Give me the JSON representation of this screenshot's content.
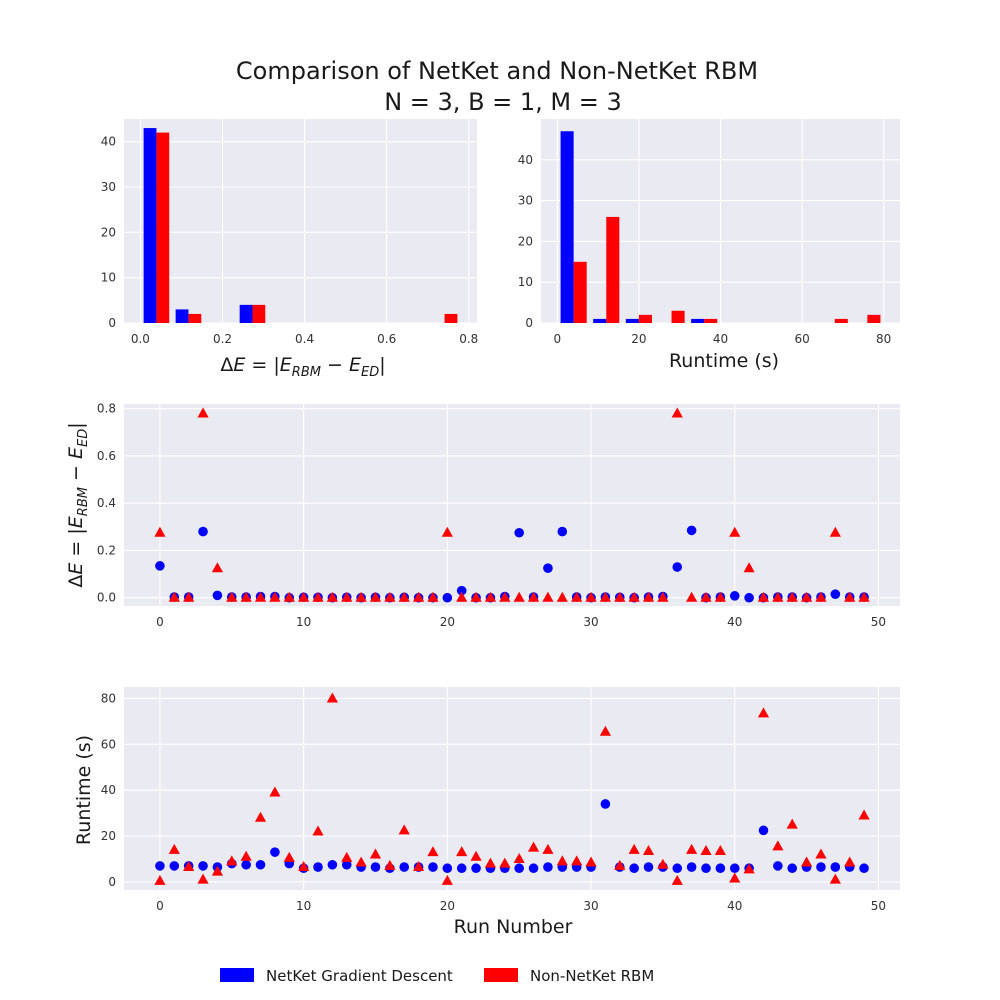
{
  "figure": {
    "title_line1": "Comparison of NetKet and Non-NetKet RBM",
    "title_line2": "N = 3, B = 1, M = 3"
  },
  "legend": {
    "entries": [
      {
        "label": "NetKet Gradient Descent",
        "color": "#0000ff"
      },
      {
        "label": "Non-NetKet RBM",
        "color": "#ff0000"
      }
    ]
  },
  "chart_data": [
    {
      "id": "hist_deltaE",
      "type": "bar",
      "xlabel": "ΔE = |E_RBM − E_ED|",
      "xlim": [
        -0.04,
        0.82
      ],
      "ylim": [
        0,
        45
      ],
      "xticks": [
        0.0,
        0.2,
        0.4,
        0.6,
        0.8
      ],
      "xtick_labels": [
        "0.0",
        "0.2",
        "0.4",
        "0.6",
        "0.8"
      ],
      "yticks": [
        0,
        10,
        20,
        30,
        40
      ],
      "bin_centers": [
        0.039,
        0.117,
        0.195,
        0.273,
        0.351,
        0.429,
        0.507,
        0.585,
        0.663,
        0.741
      ],
      "bar_width": 0.0312,
      "series": [
        {
          "name": "NetKet Gradient Descent",
          "color": "#0000ff",
          "values": [
            43,
            3,
            0,
            4,
            0,
            0,
            0,
            0,
            0,
            0
          ]
        },
        {
          "name": "Non-NetKet RBM",
          "color": "#ff0000",
          "values": [
            42,
            2,
            0,
            4,
            0,
            0,
            0,
            0,
            0,
            2
          ]
        }
      ]
    },
    {
      "id": "hist_runtime",
      "type": "bar",
      "xlabel": "Runtime (s)",
      "xlim": [
        -4,
        84
      ],
      "ylim": [
        0,
        50
      ],
      "xticks": [
        0,
        20,
        40,
        60,
        80
      ],
      "xtick_labels": [
        "0",
        "20",
        "40",
        "60",
        "80"
      ],
      "yticks": [
        0,
        10,
        20,
        30,
        40
      ],
      "bin_centers": [
        4,
        12,
        20,
        28,
        36,
        44,
        52,
        60,
        68,
        76
      ],
      "bar_width": 3.2,
      "series": [
        {
          "name": "NetKet Gradient Descent",
          "color": "#0000ff",
          "values": [
            47,
            1,
            1,
            0,
            1,
            0,
            0,
            0,
            0,
            0
          ]
        },
        {
          "name": "Non-NetKet RBM",
          "color": "#ff0000",
          "values": [
            15,
            26,
            2,
            3,
            1,
            0,
            0,
            0,
            1,
            2
          ]
        }
      ]
    },
    {
      "id": "scatter_deltaE",
      "type": "scatter",
      "ylabel": "ΔE = |E_RBM − E_ED|",
      "xlim": [
        -2.5,
        51.5
      ],
      "ylim": [
        -0.035,
        0.82
      ],
      "xticks": [
        0,
        10,
        20,
        30,
        40,
        50
      ],
      "xtick_labels": [
        "0",
        "10",
        "20",
        "30",
        "40",
        "50"
      ],
      "yticks": [
        0.0,
        0.2,
        0.4,
        0.6,
        0.8
      ],
      "ytick_labels": [
        "0.0",
        "0.2",
        "0.4",
        "0.6",
        "0.8"
      ],
      "x": [
        0,
        1,
        2,
        3,
        4,
        5,
        6,
        7,
        8,
        9,
        10,
        11,
        12,
        13,
        14,
        15,
        16,
        17,
        18,
        19,
        20,
        21,
        22,
        23,
        24,
        25,
        26,
        27,
        28,
        29,
        30,
        31,
        32,
        33,
        34,
        35,
        36,
        37,
        38,
        39,
        40,
        41,
        42,
        43,
        44,
        45,
        46,
        47,
        48,
        49
      ],
      "series": [
        {
          "name": "NetKet Gradient Descent",
          "marker": "circle",
          "color": "#0000ff",
          "values": [
            0.135,
            0.003,
            0.003,
            0.28,
            0.01,
            0.003,
            0.003,
            0.005,
            0.005,
            0.0,
            0.002,
            0.002,
            0.0,
            0.002,
            0.0,
            0.002,
            0.0,
            0.002,
            0.0,
            0.0,
            0.0,
            0.03,
            0.0,
            0.0,
            0.005,
            0.275,
            0.003,
            0.125,
            0.28,
            0.003,
            0.0,
            0.003,
            0.002,
            0.0,
            0.003,
            0.005,
            0.13,
            0.285,
            0.0,
            0.003,
            0.008,
            0.0,
            0.0,
            0.003,
            0.003,
            0.0,
            0.003,
            0.015,
            0.003,
            0.003
          ]
        },
        {
          "name": "Non-NetKet RBM",
          "marker": "triangle",
          "color": "#ff0000",
          "values": [
            0.275,
            0.0,
            0.0,
            0.78,
            0.125,
            0.0,
            0.0,
            0.0,
            0.0,
            0.0,
            0.0,
            0.0,
            0.0,
            0.0,
            0.0,
            0.0,
            0.0,
            0.0,
            0.0,
            0.0,
            0.275,
            0.0,
            0.0,
            0.0,
            0.0,
            0.0,
            0.0,
            0.0,
            0.0,
            0.0,
            0.0,
            0.0,
            0.0,
            0.0,
            0.0,
            0.0,
            0.78,
            0.0,
            0.0,
            0.0,
            0.275,
            0.125,
            0.0,
            0.0,
            0.0,
            0.0,
            0.0,
            0.275,
            0.0,
            0.0
          ]
        }
      ]
    },
    {
      "id": "scatter_runtime",
      "type": "scatter",
      "xlabel": "Run Number",
      "ylabel": "Runtime (s)",
      "xlim": [
        -2.5,
        51.5
      ],
      "ylim": [
        -3.5,
        85
      ],
      "xticks": [
        0,
        10,
        20,
        30,
        40,
        50
      ],
      "xtick_labels": [
        "0",
        "10",
        "20",
        "30",
        "40",
        "50"
      ],
      "yticks": [
        0,
        20,
        40,
        60,
        80
      ],
      "ytick_labels": [
        "0",
        "20",
        "40",
        "60",
        "80"
      ],
      "x": [
        0,
        1,
        2,
        3,
        4,
        5,
        6,
        7,
        8,
        9,
        10,
        11,
        12,
        13,
        14,
        15,
        16,
        17,
        18,
        19,
        20,
        21,
        22,
        23,
        24,
        25,
        26,
        27,
        28,
        29,
        30,
        31,
        32,
        33,
        34,
        35,
        36,
        37,
        38,
        39,
        40,
        41,
        42,
        43,
        44,
        45,
        46,
        47,
        48,
        49
      ],
      "series": [
        {
          "name": "NetKet Gradient Descent",
          "marker": "circle",
          "color": "#0000ff",
          "values": [
            7,
            7,
            7,
            7,
            6.5,
            8,
            7.5,
            7.5,
            13,
            8,
            6,
            6.5,
            7.5,
            7.5,
            6.5,
            6.5,
            6,
            6.5,
            6.5,
            6.5,
            6,
            6,
            6,
            6,
            6,
            6,
            6,
            6.5,
            6.5,
            6.5,
            6.5,
            34,
            6.5,
            6,
            6.5,
            6.5,
            6,
            6.5,
            6,
            6,
            6,
            6,
            22.5,
            7,
            6,
            6.5,
            6.5,
            6.5,
            6.5,
            6
          ]
        },
        {
          "name": "Non-NetKet RBM",
          "marker": "triangle",
          "color": "#ff0000",
          "values": [
            0.5,
            14,
            6.5,
            1,
            4.5,
            9,
            11,
            28,
            39,
            10.5,
            6.5,
            22,
            80,
            10.5,
            8.5,
            12,
            7,
            22.5,
            6.5,
            13,
            0.5,
            13,
            11,
            8,
            8,
            10,
            15,
            14,
            9,
            9,
            8.5,
            65.5,
            7,
            14,
            13.5,
            7.5,
            0.5,
            14,
            13.5,
            13.5,
            1.5,
            5.5,
            73.5,
            15.5,
            25,
            8.5,
            12,
            1,
            8.5,
            29
          ]
        }
      ]
    }
  ]
}
